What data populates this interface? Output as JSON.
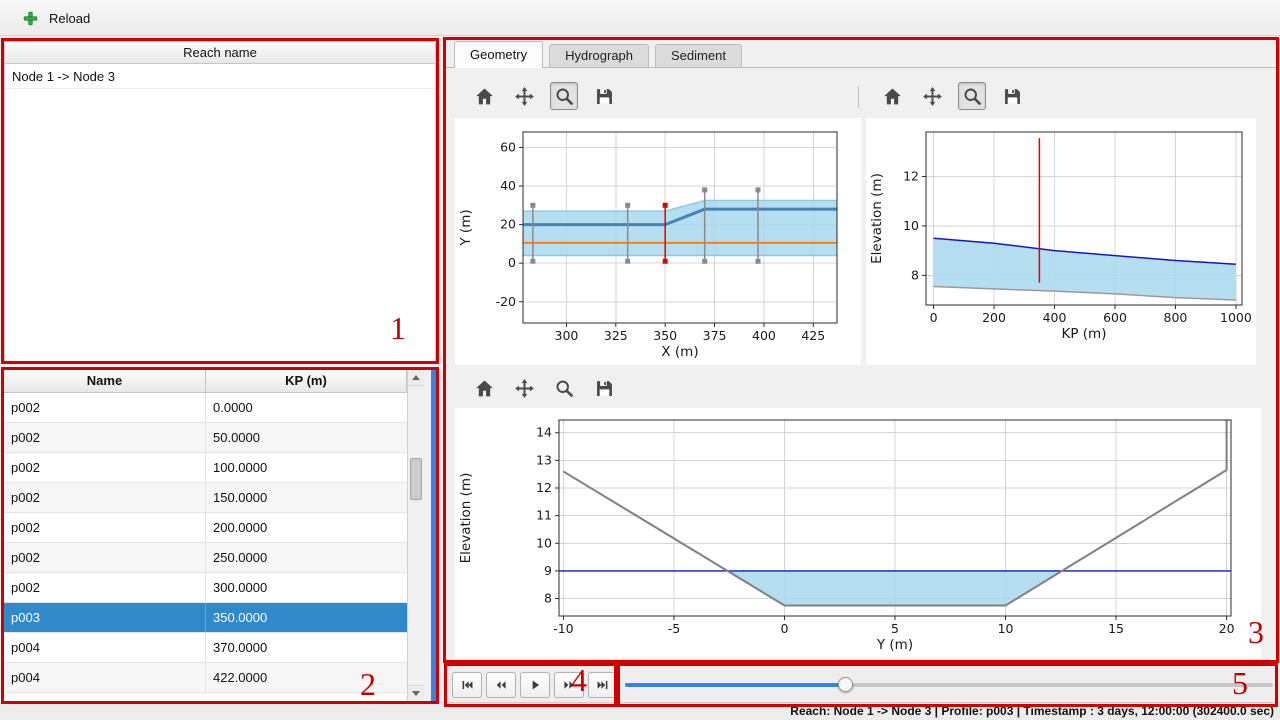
{
  "topbar": {
    "reload_label": "Reload",
    "reload_icon": "green-plus-icon"
  },
  "colors": {
    "accent": "#3584e4",
    "selection": "#3089c8",
    "annotation": "#cf0000",
    "water_fill": "#a8d8ee",
    "water_line": "#1515c8",
    "bed_line": "#808080",
    "section_line": "#8a8a8a",
    "current_section_line": "#e00000",
    "centerline": "#ff7f0e",
    "bank_line": "#4682b4"
  },
  "annotations": {
    "labels": [
      "1",
      "2",
      "3",
      "4",
      "5"
    ]
  },
  "reach_panel": {
    "header": "Reach name",
    "items": [
      "Node 1 -> Node 3"
    ]
  },
  "profile_table": {
    "columns": [
      "Name",
      "KP (m)"
    ],
    "selected_index": 7,
    "rows": [
      {
        "name": "p002",
        "kp": "0.0000"
      },
      {
        "name": "p002",
        "kp": "50.0000"
      },
      {
        "name": "p002",
        "kp": "100.0000"
      },
      {
        "name": "p002",
        "kp": "150.0000"
      },
      {
        "name": "p002",
        "kp": "200.0000"
      },
      {
        "name": "p002",
        "kp": "250.0000"
      },
      {
        "name": "p002",
        "kp": "300.0000"
      },
      {
        "name": "p003",
        "kp": "350.0000"
      },
      {
        "name": "p004",
        "kp": "370.0000"
      },
      {
        "name": "p004",
        "kp": "422.0000"
      }
    ]
  },
  "tabs": [
    {
      "label": "Geometry",
      "active": true
    },
    {
      "label": "Hydrograph",
      "active": false
    },
    {
      "label": "Sediment",
      "active": false
    }
  ],
  "figure_toolbar": {
    "buttons": [
      {
        "icon": "home"
      },
      {
        "icon": "pan"
      },
      {
        "icon": "zoom"
      },
      {
        "icon": "save"
      }
    ],
    "zoom_checked": {
      "plan": true,
      "profile": true,
      "cross": false
    }
  },
  "playback": {
    "buttons": [
      "skip-start",
      "step-back",
      "play",
      "step-forward",
      "skip-end"
    ]
  },
  "slider": {
    "value_pct": 34
  },
  "statusbar": {
    "text": "Reach: Node 1 -> Node 3 | Profile: p003 | Timestamp : 3 days, 12:00:00 (302400.0 sec)"
  },
  "chart_data": [
    {
      "id": "plan-view",
      "type": "line",
      "title": "",
      "xlabel": "X (m)",
      "ylabel": "Y (m)",
      "xlim": [
        278,
        437
      ],
      "ylim": [
        -31,
        68
      ],
      "xticks": [
        300,
        325,
        350,
        375,
        400,
        425
      ],
      "yticks": [
        -20,
        0,
        20,
        40,
        60
      ],
      "grid": true,
      "margins": {
        "l": 68,
        "r": 24,
        "t": 14,
        "b": 42
      },
      "series": [
        {
          "kind": "area",
          "name": "channel-extent",
          "color": "#a8d8ee",
          "opacity": 0.85,
          "points": [
            [
              278,
              27
            ],
            [
              350,
              27
            ],
            [
              370,
              32.5
            ],
            [
              437,
              32.5
            ],
            [
              437,
              4
            ],
            [
              278,
              4
            ]
          ]
        },
        {
          "kind": "line",
          "name": "left-bank-edge",
          "color": "#8ecae6",
          "width": 1.5,
          "points": [
            [
              278,
              27
            ],
            [
              350,
              27
            ],
            [
              370,
              32.5
            ],
            [
              437,
              32.5
            ]
          ]
        },
        {
          "kind": "line",
          "name": "right-bank-edge",
          "color": "#8ecae6",
          "width": 1.5,
          "points": [
            [
              278,
              4
            ],
            [
              437,
              4
            ]
          ]
        },
        {
          "kind": "line",
          "name": "bank-line",
          "color": "#4682b4",
          "width": 3,
          "points": [
            [
              278,
              20
            ],
            [
              350,
              20
            ],
            [
              370,
              28
            ],
            [
              437,
              28
            ]
          ]
        },
        {
          "kind": "line",
          "name": "centerline",
          "color": "#ff7f0e",
          "width": 2,
          "points": [
            [
              278,
              10.5
            ],
            [
              437,
              10.5
            ]
          ]
        },
        {
          "kind": "marker-vline",
          "name": "cross-section",
          "color": "#8a8a8a",
          "width": 1.5,
          "x": 283,
          "y1": 1,
          "y2": 30
        },
        {
          "kind": "marker-vline",
          "name": "cross-section",
          "color": "#8a8a8a",
          "width": 1.5,
          "x": 331,
          "y1": 1,
          "y2": 30
        },
        {
          "kind": "marker-vline",
          "name": "current-cross-section",
          "color": "#e00000",
          "width": 1.5,
          "x": 350,
          "y1": 1,
          "y2": 30
        },
        {
          "kind": "marker-vline",
          "name": "cross-section",
          "color": "#8a8a8a",
          "width": 1.5,
          "x": 370,
          "y1": 1,
          "y2": 38
        },
        {
          "kind": "marker-vline",
          "name": "cross-section",
          "color": "#8a8a8a",
          "width": 1.5,
          "x": 397,
          "y1": 1,
          "y2": 38
        }
      ]
    },
    {
      "id": "long-profile",
      "type": "line",
      "title": "",
      "xlabel": "KP (m)",
      "ylabel": "Elevation (m)",
      "xlim": [
        -25,
        1020
      ],
      "ylim": [
        6.8,
        13.8
      ],
      "xticks": [
        0,
        200,
        400,
        600,
        800,
        1000
      ],
      "yticks": [
        8,
        10,
        12
      ],
      "grid": true,
      "margins": {
        "l": 60,
        "r": 14,
        "t": 14,
        "b": 60
      },
      "series": [
        {
          "kind": "area",
          "name": "water-body",
          "color": "#a8d8ee",
          "opacity": 0.85,
          "points": [
            [
              0,
              9.5
            ],
            [
              200,
              9.3
            ],
            [
              400,
              9.0
            ],
            [
              600,
              8.8
            ],
            [
              800,
              8.6
            ],
            [
              1000,
              8.45
            ],
            [
              1000,
              7.0
            ],
            [
              800,
              7.1
            ],
            [
              600,
              7.25
            ],
            [
              400,
              7.36
            ],
            [
              200,
              7.45
            ],
            [
              0,
              7.55
            ]
          ]
        },
        {
          "kind": "line",
          "name": "water-level",
          "color": "#1515c8",
          "width": 1.5,
          "points": [
            [
              0,
              9.5
            ],
            [
              200,
              9.3
            ],
            [
              400,
              9.0
            ],
            [
              600,
              8.8
            ],
            [
              800,
              8.6
            ],
            [
              1000,
              8.45
            ]
          ]
        },
        {
          "kind": "line",
          "name": "bed-level",
          "color": "#9a9a9a",
          "width": 1.5,
          "points": [
            [
              0,
              7.55
            ],
            [
              200,
              7.45
            ],
            [
              400,
              7.36
            ],
            [
              600,
              7.25
            ],
            [
              800,
              7.1
            ],
            [
              1000,
              7.0
            ]
          ]
        },
        {
          "kind": "vline",
          "name": "current-profile-marker",
          "color": "#e00000",
          "width": 1.5,
          "x": 350,
          "y1": 7.7,
          "y2": 13.55
        }
      ]
    },
    {
      "id": "cross-section",
      "type": "line",
      "title": "",
      "xlabel": "Y (m)",
      "ylabel": "Elevation (m)",
      "xlim": [
        -10.2,
        20.2
      ],
      "ylim": [
        7.37,
        14.46
      ],
      "xticks": [
        -10,
        -5,
        0,
        5,
        10,
        15,
        20
      ],
      "yticks": [
        8,
        9,
        10,
        11,
        12,
        13,
        14
      ],
      "grid": true,
      "margins": {
        "l": 104,
        "r": 30,
        "t": 12,
        "b": 42
      },
      "series": [
        {
          "kind": "area",
          "name": "water-body",
          "color": "#a8d8ee",
          "opacity": 0.85,
          "points": [
            [
              -2.58,
              9
            ],
            [
              0,
              7.75
            ],
            [
              10,
              7.75
            ],
            [
              12.55,
              9
            ]
          ]
        },
        {
          "kind": "line",
          "name": "water-level",
          "color": "#1515c8",
          "width": 1.3,
          "points": [
            [
              -10.2,
              9
            ],
            [
              20.2,
              9
            ]
          ]
        },
        {
          "kind": "line",
          "name": "bed-profile",
          "color": "#808080",
          "width": 2,
          "points": [
            [
              -10,
              12.6
            ],
            [
              0,
              7.75
            ],
            [
              10,
              7.75
            ],
            [
              20,
              12.65
            ],
            [
              20,
              14.46
            ]
          ]
        }
      ]
    }
  ]
}
